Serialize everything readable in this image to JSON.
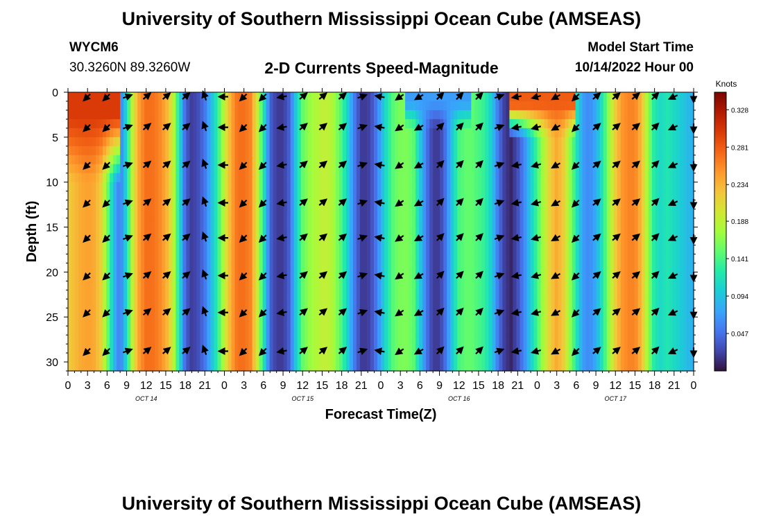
{
  "header": {
    "title": "University of Southern Mississippi Ocean Cube (AMSEAS)",
    "station_id": "WYCM6",
    "coordinates": "30.3260N  89.3260W",
    "subtitle": "2-D Currents Speed-Magnitude",
    "model_start_label": "Model Start Time",
    "model_start_value": "10/14/2022 Hour 00"
  },
  "footer": {
    "title": "University of Southern Mississippi Ocean Cube (AMSEAS)"
  },
  "chart_data": {
    "type": "heatmap",
    "title": "2-D Currents Speed-Magnitude",
    "xlabel": "Forecast Time(Z)",
    "ylabel": "Depth (ft)",
    "x_range_hours": [
      0,
      96
    ],
    "ylim": [
      0,
      31
    ],
    "y_inverted": true,
    "x_tick_hours": [
      0,
      3,
      6,
      9,
      12,
      15,
      18,
      21,
      24,
      27,
      30,
      33,
      36,
      39,
      42,
      45,
      48,
      51,
      54,
      57,
      60,
      63,
      66,
      69,
      72,
      75,
      78,
      81,
      84,
      87,
      90,
      93,
      96
    ],
    "x_tick_labels": [
      "0",
      "3",
      "6",
      "9",
      "12",
      "15",
      "18",
      "21",
      "0",
      "3",
      "6",
      "9",
      "12",
      "15",
      "18",
      "21",
      "0",
      "3",
      "6",
      "9",
      "12",
      "15",
      "18",
      "21",
      "0",
      "3",
      "6",
      "9",
      "12",
      "15",
      "18",
      "21",
      "0"
    ],
    "y_ticks": [
      0,
      5,
      10,
      15,
      20,
      25,
      30
    ],
    "y_tick_labels": [
      "0",
      "5",
      "10",
      "15",
      "20",
      "25",
      "30"
    ],
    "day_labels": [
      {
        "text": "OCT 14",
        "hour": 12
      },
      {
        "text": "OCT 15",
        "hour": 36
      },
      {
        "text": "OCT 16",
        "hour": 60
      },
      {
        "text": "OCT 17",
        "hour": 84
      }
    ],
    "colorbar": {
      "label": "Knots",
      "min": 0.0,
      "max": 0.35,
      "ticks": [
        0.047,
        0.094,
        0.141,
        0.188,
        0.234,
        0.281,
        0.328
      ],
      "tick_labels": [
        "0.047",
        "0.094",
        "0.141",
        "0.188",
        "0.234",
        "0.281",
        "0.328"
      ]
    },
    "speed_profile": {
      "hours": [
        0,
        1,
        2,
        3,
        4,
        5,
        6,
        7,
        8,
        9,
        10,
        11,
        12,
        13,
        14,
        15,
        16,
        17,
        18,
        19,
        20,
        21,
        22,
        23,
        24,
        25,
        26,
        27,
        28,
        29,
        30,
        31,
        32,
        33,
        34,
        35,
        36,
        37,
        38,
        39,
        40,
        41,
        42,
        43,
        44,
        45,
        46,
        47,
        48,
        49,
        50,
        51,
        52,
        53,
        54,
        55,
        56,
        57,
        58,
        59,
        60,
        61,
        62,
        63,
        64,
        65,
        66,
        67,
        68,
        69,
        70,
        71,
        72,
        73,
        74,
        75,
        76,
        77,
        78,
        79,
        80,
        81,
        82,
        83,
        84,
        85,
        86,
        87,
        88,
        89,
        90,
        91,
        92,
        93,
        94,
        95,
        96
      ],
      "values": [
        0.22,
        0.23,
        0.24,
        0.245,
        0.24,
        0.22,
        0.16,
        0.09,
        0.05,
        0.11,
        0.2,
        0.25,
        0.27,
        0.27,
        0.26,
        0.24,
        0.2,
        0.12,
        0.04,
        0.02,
        0.03,
        0.05,
        0.09,
        0.13,
        0.19,
        0.24,
        0.27,
        0.27,
        0.26,
        0.2,
        0.12,
        0.04,
        0.02,
        0.02,
        0.04,
        0.1,
        0.15,
        0.17,
        0.18,
        0.19,
        0.19,
        0.17,
        0.14,
        0.1,
        0.05,
        0.02,
        0.02,
        0.04,
        0.08,
        0.12,
        0.15,
        0.16,
        0.16,
        0.15,
        0.1,
        0.05,
        0.02,
        0.02,
        0.05,
        0.1,
        0.14,
        0.15,
        0.15,
        0.14,
        0.13,
        0.1,
        0.05,
        0.02,
        0.01,
        0.03,
        0.06,
        0.1,
        0.14,
        0.18,
        0.22,
        0.24,
        0.22,
        0.17,
        0.12,
        0.07,
        0.06,
        0.08,
        0.12,
        0.17,
        0.22,
        0.25,
        0.26,
        0.26,
        0.23,
        0.17,
        0.12,
        0.11,
        0.12,
        0.11,
        0.1,
        0.09,
        0.08
      ]
    },
    "surface_features": [
      {
        "hour_start": 0,
        "hour_end": 8,
        "depth_ft": 10,
        "speed": 0.3
      },
      {
        "hour_start": 52,
        "hour_end": 62,
        "depth_ft": 4,
        "speed": 0.07
      },
      {
        "hour_start": 68,
        "hour_end": 78,
        "depth_ft": 5,
        "speed": 0.28
      }
    ],
    "vector_hours": [
      3,
      6,
      9,
      12,
      15,
      18,
      21,
      24,
      27,
      30,
      33,
      36,
      39,
      42,
      45,
      48,
      51,
      54,
      57,
      60,
      63,
      66,
      69,
      72,
      75,
      78,
      81,
      84,
      87,
      90,
      93,
      96
    ],
    "vector_depths_ft": [
      0.5,
      3.9,
      8.1,
      12.3,
      16.2,
      20.4,
      24.5,
      28.8
    ],
    "vector_direction_deg_by_hour": [
      225,
      225,
      20,
      40,
      40,
      40,
      110,
      180,
      225,
      225,
      190,
      40,
      40,
      40,
      20,
      170,
      215,
      210,
      45,
      45,
      45,
      20,
      190,
      195,
      210,
      225,
      40,
      40,
      40,
      45,
      205,
      270
    ]
  }
}
